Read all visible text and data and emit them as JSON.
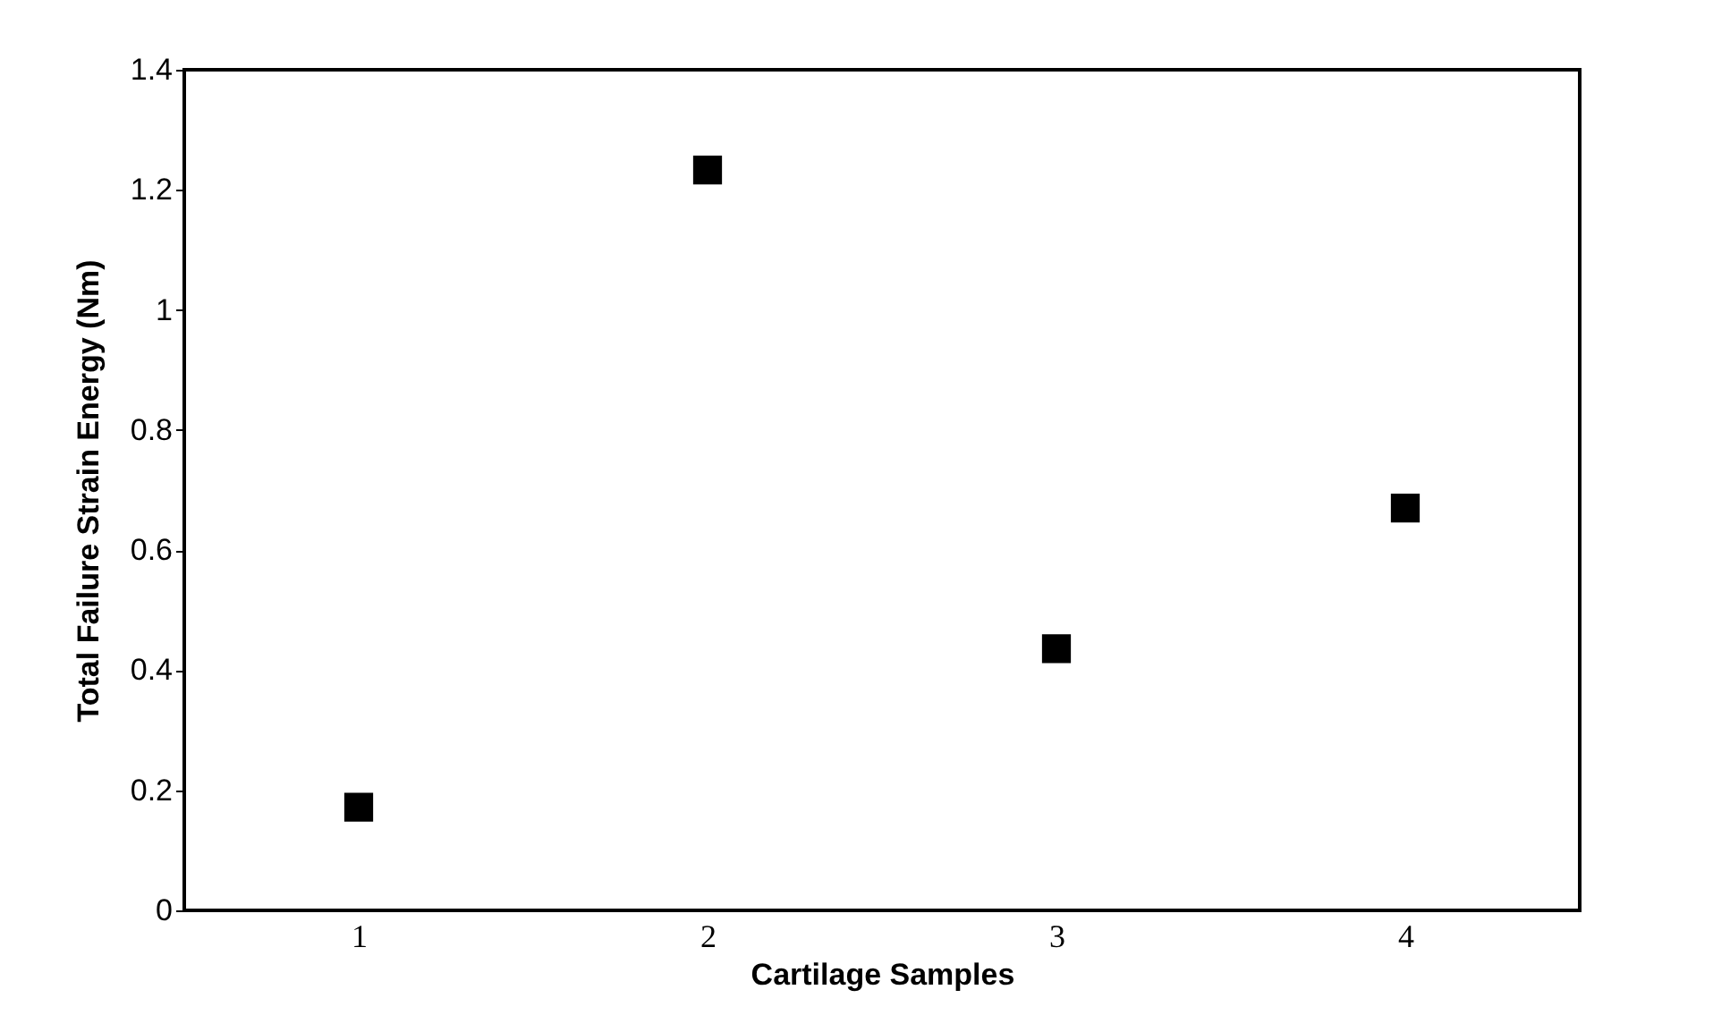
{
  "chart_data": {
    "type": "scatter",
    "xlabel": "Cartilage Samples",
    "ylabel": "Total Failure Strain Energy (Nm)",
    "categories": [
      "1",
      "2",
      "3",
      "4"
    ],
    "series": [
      {
        "color": "#000000",
        "values": [
          0.172,
          1.233,
          0.436,
          0.67
        ]
      }
    ],
    "ylim": [
      0,
      1.4
    ],
    "yticks": [
      0,
      0.2,
      0.4,
      0.6,
      0.8,
      1,
      1.2,
      1.4
    ],
    "grid": false,
    "legend": false,
    "marker": "square"
  }
}
